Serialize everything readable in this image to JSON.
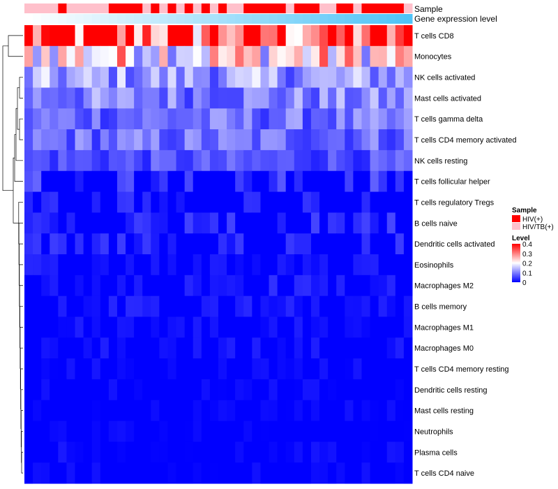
{
  "chart_data": {
    "type": "heatmap",
    "annotation_labels": {
      "sample": "Sample",
      "gene_expression": "Gene expression level"
    },
    "row_labels": [
      "T cells CD8",
      "Monocytes",
      "NK cells activated",
      "Mast cells activated",
      "T cells gamma delta",
      "T cells CD4 memory activated",
      "NK cells resting",
      "T cells follicular helper",
      "T cells regulatory  Tregs",
      "B cells naive",
      "Dendritic cells activated",
      "Eosinophils",
      "Macrophages M2",
      "B cells memory",
      "Macrophages M1",
      "Macrophages M0",
      "T cells CD4 memory resting",
      "Dendritic cells resting",
      "Mast cells resting",
      "Neutrophils",
      "Plasma cells",
      "T cells CD4 naive"
    ],
    "row_means": [
      0.34,
      0.22,
      0.12,
      0.1,
      0.085,
      0.085,
      0.06,
      0.05,
      0.03,
      0.035,
      0.03,
      0.02,
      0.025,
      0.02,
      0.015,
      0.015,
      0.008,
      0.006,
      0.004,
      0.003,
      0.01,
      0.005
    ],
    "n_samples": 46,
    "sample_groups": [
      "HIV/TB(+)",
      "HIV/TB(+)",
      "HIV/TB(+)",
      "HIV/TB(+)",
      "HIV(+)",
      "HIV/TB(+)",
      "HIV/TB(+)",
      "HIV/TB(+)",
      "HIV/TB(+)",
      "HIV/TB(+)",
      "HIV(+)",
      "HIV(+)",
      "HIV(+)",
      "HIV(+)",
      "HIV/TB(+)",
      "HIV(+)",
      "HIV/TB(+)",
      "HIV(+)",
      "HIV/TB(+)",
      "HIV(+)",
      "HIV/TB(+)",
      "HIV(+)",
      "HIV/TB(+)",
      "HIV(+)",
      "HIV/TB(+)",
      "HIV/TB(+)",
      "HIV(+)",
      "HIV(+)",
      "HIV(+)",
      "HIV(+)",
      "HIV(+)",
      "HIV/TB(+)",
      "HIV(+)",
      "HIV(+)",
      "HIV(+)",
      "HIV/TB(+)",
      "HIV/TB(+)",
      "HIV(+)",
      "HIV(+)",
      "HIV/TB(+)",
      "HIV(+)",
      "HIV(+)",
      "HIV(+)",
      "HIV(+)",
      "HIV(+)",
      "HIV/TB(+)"
    ],
    "gene_expression_range": [
      0,
      1
    ],
    "legend": {
      "sample_title": "Sample",
      "sample_entries": [
        {
          "label": "HIV(+)",
          "color": "#ff0000"
        },
        {
          "label": "HIV/TB(+)",
          "color": "#ffc0cb"
        }
      ],
      "level_title": "Level",
      "level_ticks": [
        0.4,
        0.3,
        0.2,
        0.1,
        0
      ],
      "level_range": [
        0,
        0.4
      ],
      "placement": "right"
    },
    "colors": {
      "low": "#0000ff",
      "mid": "#ffffff",
      "high": "#ff0000",
      "gene_low": "#ffffff",
      "gene_high": "#4fc3f7"
    },
    "xlabel": "",
    "ylabel": ""
  }
}
